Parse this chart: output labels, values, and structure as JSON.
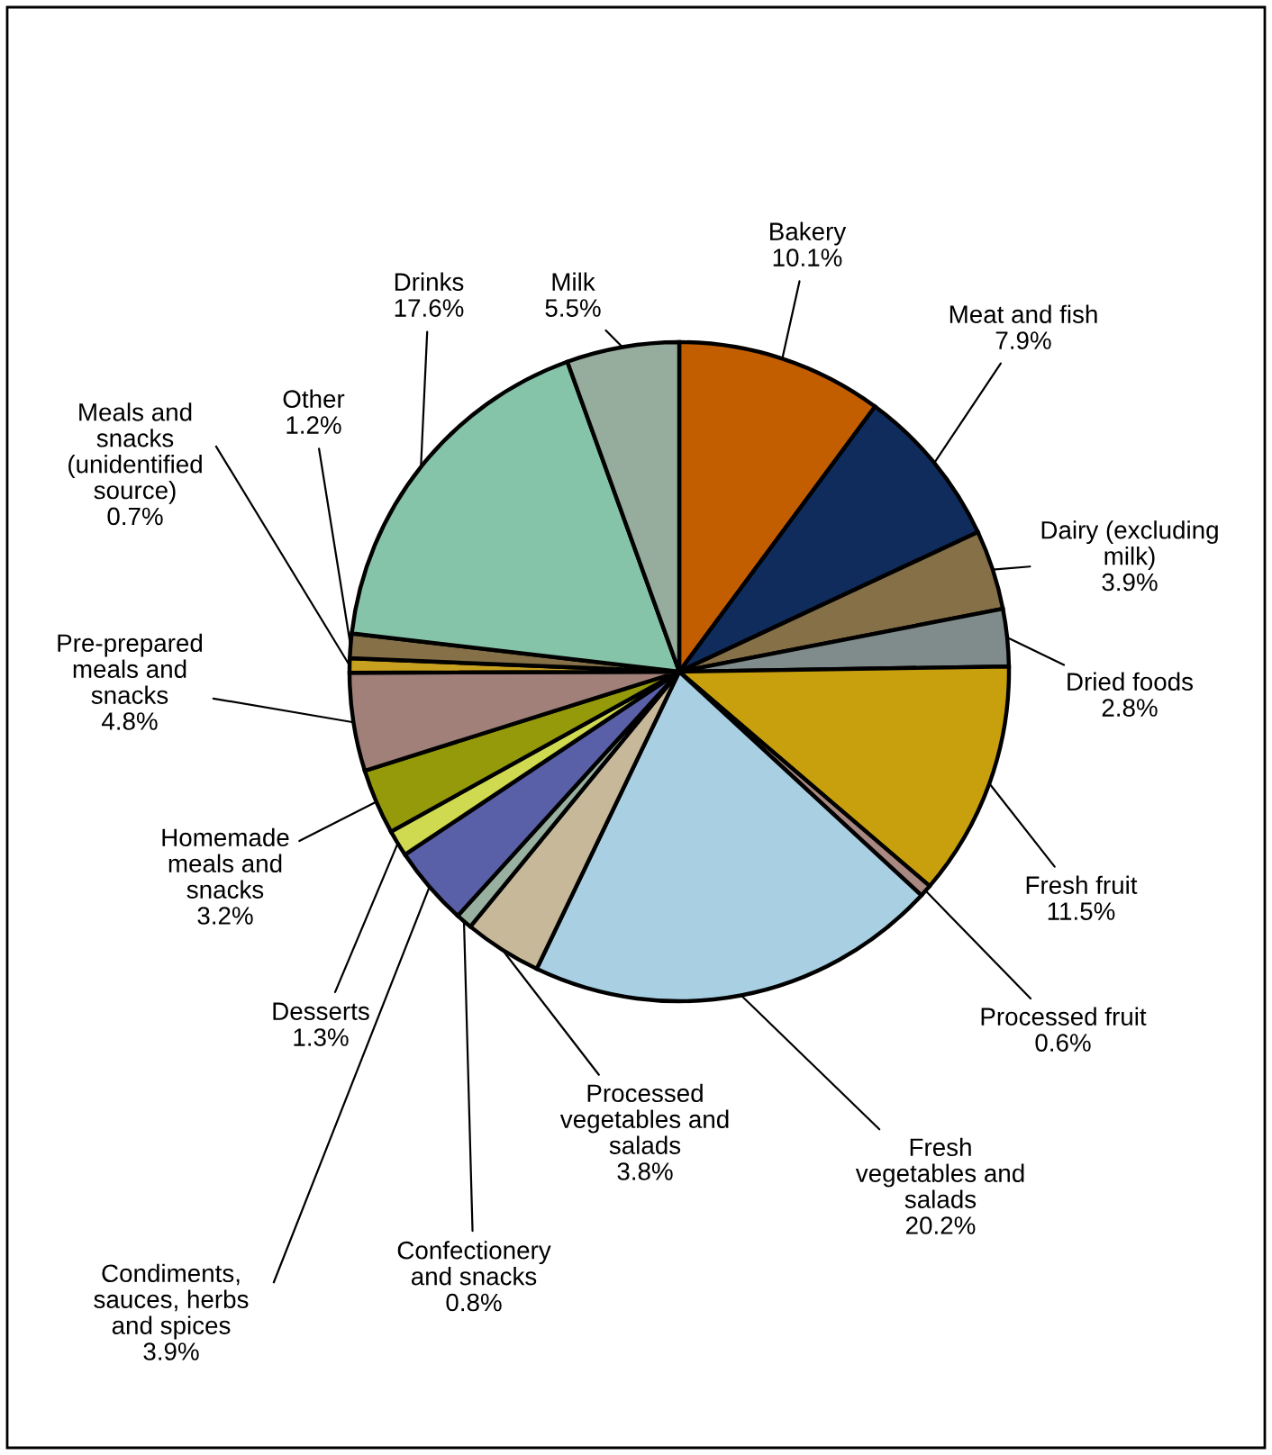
{
  "chart_data": {
    "type": "pie",
    "categories": [
      "Bakery",
      "Meat and fish",
      "Dairy (excluding milk)",
      "Dried foods",
      "Fresh fruit",
      "Processed fruit",
      "Fresh vegetables and salads",
      "Processed vegetables and salads",
      "Confectionery and snacks",
      "Condiments, sauces, herbs and spices",
      "Desserts",
      "Homemade meals and snacks",
      "Pre-prepared meals and snacks",
      "Meals and snacks (unidentified source)",
      "Other",
      "Drinks",
      "Milk"
    ],
    "values": [
      10.1,
      7.9,
      3.9,
      2.8,
      11.5,
      0.6,
      20.2,
      3.8,
      0.8,
      3.9,
      1.3,
      3.2,
      4.8,
      0.7,
      1.2,
      17.6,
      5.5
    ],
    "colors": [
      "#c25e00",
      "#102c5c",
      "#857047",
      "#808b8b",
      "#c8a00e",
      "#a88880",
      "#a9cfe2",
      "#c6b898",
      "#98b0a0",
      "#5a60a8",
      "#d0da50",
      "#959a0a",
      "#a08078",
      "#c8a020",
      "#857047",
      "#86c4aa",
      "#96ac9c"
    ],
    "value_labels": [
      "10.1%",
      "7.9%",
      "3.9%",
      "2.8%",
      "11.5%",
      "0.6%",
      "20.2%",
      "3.8%",
      "0.8%",
      "3.9%",
      "1.3%",
      "3.2%",
      "4.8%",
      "0.7%",
      "1.2%",
      "17.6%",
      "5.5%"
    ],
    "legend": false
  }
}
